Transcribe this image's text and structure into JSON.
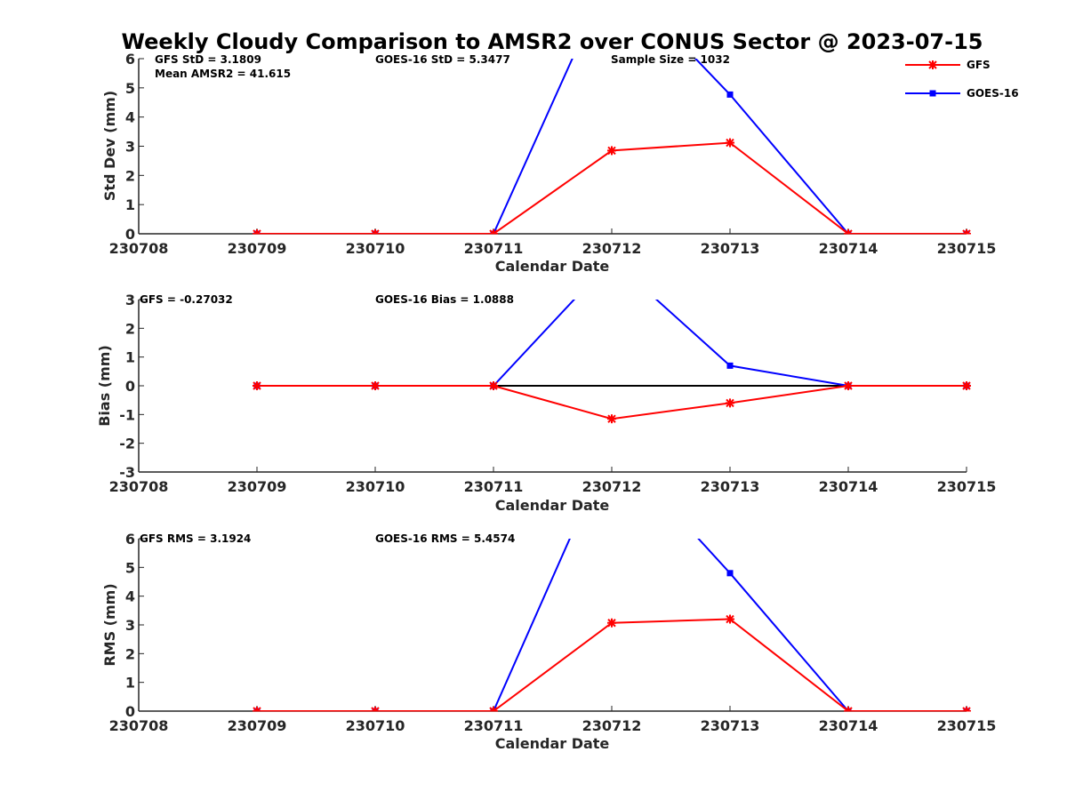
{
  "colors": {
    "gfs": "#ff0000",
    "goes": "#0000ff",
    "axis": "#262626",
    "zero_line": "#000000"
  },
  "chart_data": [
    {
      "type": "line",
      "title": "Weekly Cloudy Comparison to AMSR2 over CONUS Sector @ 2023-07-15",
      "xlabel": "Calendar Date",
      "ylabel": "Std Dev (mm)",
      "categories": [
        "230708",
        "230709",
        "230710",
        "230711",
        "230712",
        "230713",
        "230714",
        "230715"
      ],
      "ylim": [
        0,
        6
      ],
      "yticks": [
        0,
        1,
        2,
        3,
        4,
        5,
        6
      ],
      "series": [
        {
          "name": "GFS",
          "x": [
            "230709",
            "230710",
            "230711",
            "230712",
            "230713",
            "230714",
            "230715"
          ],
          "values": [
            0,
            0,
            0,
            2.85,
            3.12,
            0,
            0
          ]
        },
        {
          "name": "GOES-16",
          "x": [
            "230709",
            "230710",
            "230711",
            "230712",
            "230713",
            "230714",
            "230715"
          ],
          "values": [
            0,
            0,
            0,
            9.0,
            4.77,
            0,
            0
          ]
        }
      ],
      "annotations": [
        "GFS StD = 3.1809",
        "Mean AMSR2 = 41.615",
        "GOES-16 StD = 5.3477",
        "Sample Size = 1032"
      ],
      "legend": {
        "position": "top-right",
        "entries": [
          "GFS",
          "GOES-16"
        ]
      }
    },
    {
      "type": "line",
      "xlabel": "Calendar Date",
      "ylabel": "Bias (mm)",
      "categories": [
        "230708",
        "230709",
        "230710",
        "230711",
        "230712",
        "230713",
        "230714",
        "230715"
      ],
      "ylim": [
        -3,
        3
      ],
      "yticks": [
        -3,
        -2,
        -1,
        0,
        1,
        2,
        3
      ],
      "series": [
        {
          "name": "GFS",
          "x": [
            "230709",
            "230710",
            "230711",
            "230712",
            "230713",
            "230714",
            "230715"
          ],
          "values": [
            0,
            0,
            0,
            -1.15,
            -0.6,
            0,
            0
          ]
        },
        {
          "name": "GOES-16",
          "x": [
            "230709",
            "230710",
            "230711",
            "230712",
            "230713",
            "230714",
            "230715"
          ],
          "values": [
            0,
            0,
            0,
            4.4,
            0.7,
            0,
            0
          ]
        }
      ],
      "annotations": [
        "GFS = -0.27032",
        "GOES-16 Bias  = 1.0888"
      ]
    },
    {
      "type": "line",
      "xlabel": "Calendar Date",
      "ylabel": "RMS (mm)",
      "categories": [
        "230708",
        "230709",
        "230710",
        "230711",
        "230712",
        "230713",
        "230714",
        "230715"
      ],
      "ylim": [
        0,
        6
      ],
      "yticks": [
        0,
        1,
        2,
        3,
        4,
        5,
        6
      ],
      "series": [
        {
          "name": "GFS",
          "x": [
            "230709",
            "230710",
            "230711",
            "230712",
            "230713",
            "230714",
            "230715"
          ],
          "values": [
            0,
            0,
            0,
            3.07,
            3.2,
            0,
            0
          ]
        },
        {
          "name": "GOES-16",
          "x": [
            "230709",
            "230710",
            "230711",
            "230712",
            "230713",
            "230714",
            "230715"
          ],
          "values": [
            0,
            0,
            0,
            9.3,
            4.8,
            0,
            0
          ]
        }
      ],
      "annotations": [
        "GFS RMS = 3.1924",
        "GOES-16 RMS = 5.4574"
      ]
    }
  ]
}
